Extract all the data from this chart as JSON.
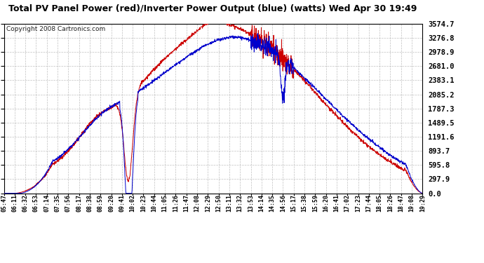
{
  "title": "Total PV Panel Power (red)/Inverter Power Output (blue) (watts) Wed Apr 30 19:49",
  "copyright": "Copyright 2008 Cartronics.com",
  "background_color": "#ffffff",
  "plot_bg_color": "#ffffff",
  "grid_color": "#b0b0b0",
  "line_color_red": "#cc0000",
  "line_color_blue": "#0000cc",
  "y_ticks": [
    0.0,
    297.9,
    595.8,
    893.7,
    1191.6,
    1489.5,
    1787.3,
    2085.2,
    2383.1,
    2681.0,
    2978.9,
    3276.8,
    3574.7
  ],
  "x_labels": [
    "05:47",
    "06:11",
    "06:32",
    "06:53",
    "07:14",
    "07:35",
    "07:56",
    "08:17",
    "08:38",
    "08:59",
    "09:20",
    "09:41",
    "10:02",
    "10:23",
    "10:44",
    "11:05",
    "11:26",
    "11:47",
    "12:08",
    "12:29",
    "12:50",
    "13:11",
    "13:32",
    "13:53",
    "14:14",
    "14:35",
    "14:56",
    "15:17",
    "15:38",
    "15:59",
    "16:20",
    "16:41",
    "17:02",
    "17:23",
    "17:44",
    "18:05",
    "18:26",
    "18:47",
    "19:08",
    "19:29"
  ],
  "ymax": 3574.7,
  "ymin": 0.0,
  "title_fontsize": 9,
  "copyright_fontsize": 6.5,
  "ylabel_fontsize": 7.5,
  "xlabel_fontsize": 6
}
